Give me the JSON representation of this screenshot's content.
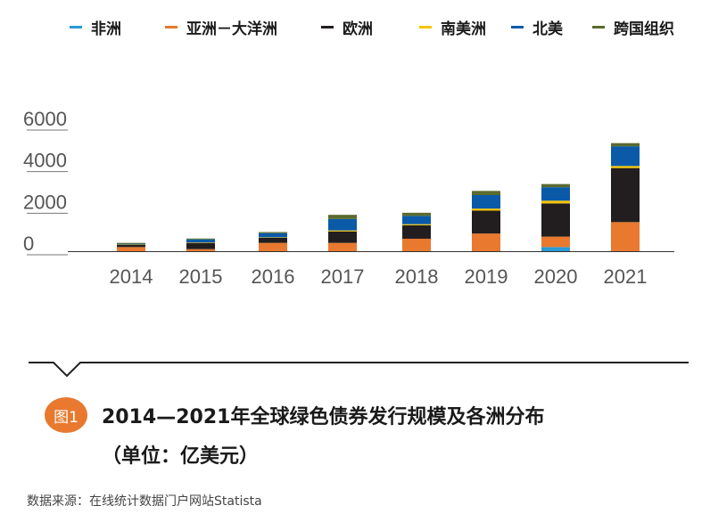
{
  "chart_data": {
    "type": "bar",
    "stacked": true,
    "categories": [
      "2014",
      "2015",
      "2016",
      "2017",
      "2018",
      "2019",
      "2020",
      "2021"
    ],
    "series": [
      {
        "name": "非洲",
        "color": "#2a9bd6",
        "values": [
          0,
          0,
          0,
          0,
          0,
          0,
          200,
          0
        ]
      },
      {
        "name": "亚洲－大洋洲",
        "color": "#e8792e",
        "values": [
          200,
          100,
          400,
          400,
          600,
          850,
          500,
          1400
        ]
      },
      {
        "name": "欧洲",
        "color": "#221e1f",
        "values": [
          100,
          300,
          250,
          550,
          650,
          1100,
          1600,
          2600
        ]
      },
      {
        "name": "南美洲",
        "color": "#f5c400",
        "values": [
          20,
          20,
          20,
          50,
          50,
          100,
          130,
          100
        ]
      },
      {
        "name": "北美",
        "color": "#0a5aa8",
        "values": [
          40,
          150,
          200,
          550,
          400,
          650,
          650,
          950
        ]
      },
      {
        "name": "跨国组织",
        "color": "#5a6b2e",
        "values": [
          40,
          40,
          50,
          200,
          150,
          200,
          150,
          150
        ]
      }
    ],
    "yticks": [
      0,
      2000,
      4000,
      6000
    ],
    "ylim": [
      0,
      6000
    ],
    "title": "2014—2021年全球绿色债券发行规模及各洲分布",
    "subtitle": "（单位：亿美元）",
    "legend_position": "top"
  },
  "caption": {
    "badge": "图1",
    "title": "2014—2021年全球绿色债券发行规模及各洲分布",
    "subtitle": "（单位：亿美元）"
  },
  "source": "数据来源：在线统计数据门户网站Statista"
}
